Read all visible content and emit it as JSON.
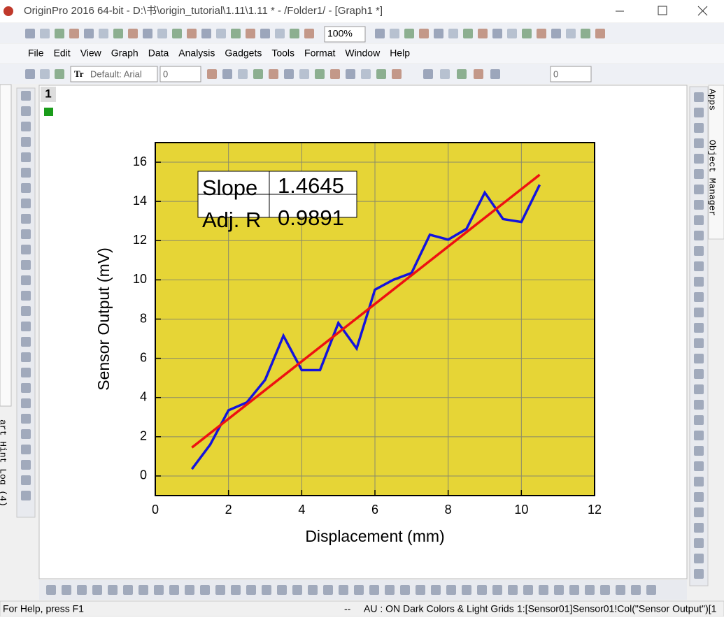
{
  "window": {
    "title": "OriginPro 2016 64-bit - D:\\书\\origin_tutorial\\1.11\\1.11 * - /Folder1/ - [Graph1 *]",
    "menu": [
      "File",
      "Edit",
      "View",
      "Graph",
      "Data",
      "Analysis",
      "Gadgets",
      "Tools",
      "Format",
      "Window",
      "Help"
    ],
    "zoom": "100%",
    "font": "Default: Arial",
    "font_size": "0",
    "line_width": "0",
    "page_number": "1",
    "right_tabs": [
      "Apps",
      "Object Manager"
    ],
    "left_tab": "art Hint Log (4)",
    "status": [
      "For Help, press F1",
      "--",
      "AU : ON",
      "Dark Colors & Light Grids",
      "1:[Sensor01]Sensor01!Col(\"Sensor Output\")[1"
    ]
  },
  "chart_data": {
    "type": "line",
    "xlabel": "Displacement (mm)",
    "ylabel": "Sensor Output (mV)",
    "x": [
      1,
      1.5,
      2,
      2.5,
      3,
      3.5,
      4,
      4.5,
      5,
      5.5,
      6,
      6.5,
      7,
      7.5,
      8,
      8.5,
      9,
      9.5,
      10,
      10.5
    ],
    "series": [
      {
        "color": "#1414dc",
        "values": [
          0.35,
          1.6,
          3.35,
          3.75,
          4.9,
          7.15,
          5.4,
          5.4,
          7.8,
          6.5,
          9.5,
          10.0,
          10.35,
          12.3,
          12.05,
          12.6,
          14.45,
          13.1,
          12.95,
          14.85
        ]
      },
      {
        "color": "#ee1111",
        "x": [
          1,
          10.5
        ],
        "values": [
          1.45,
          15.36
        ]
      }
    ],
    "xlim": [
      0,
      12
    ],
    "ylim": [
      -1,
      17
    ],
    "xticks": [
      0,
      2,
      4,
      6,
      8,
      10,
      12
    ],
    "yticks": [
      0,
      2,
      4,
      6,
      8,
      10,
      12,
      14,
      16
    ],
    "grid": true,
    "background": "#e6d536",
    "table": [
      [
        "Slope",
        "1.4645"
      ],
      [
        "Adj. R",
        "0.9891"
      ]
    ]
  }
}
